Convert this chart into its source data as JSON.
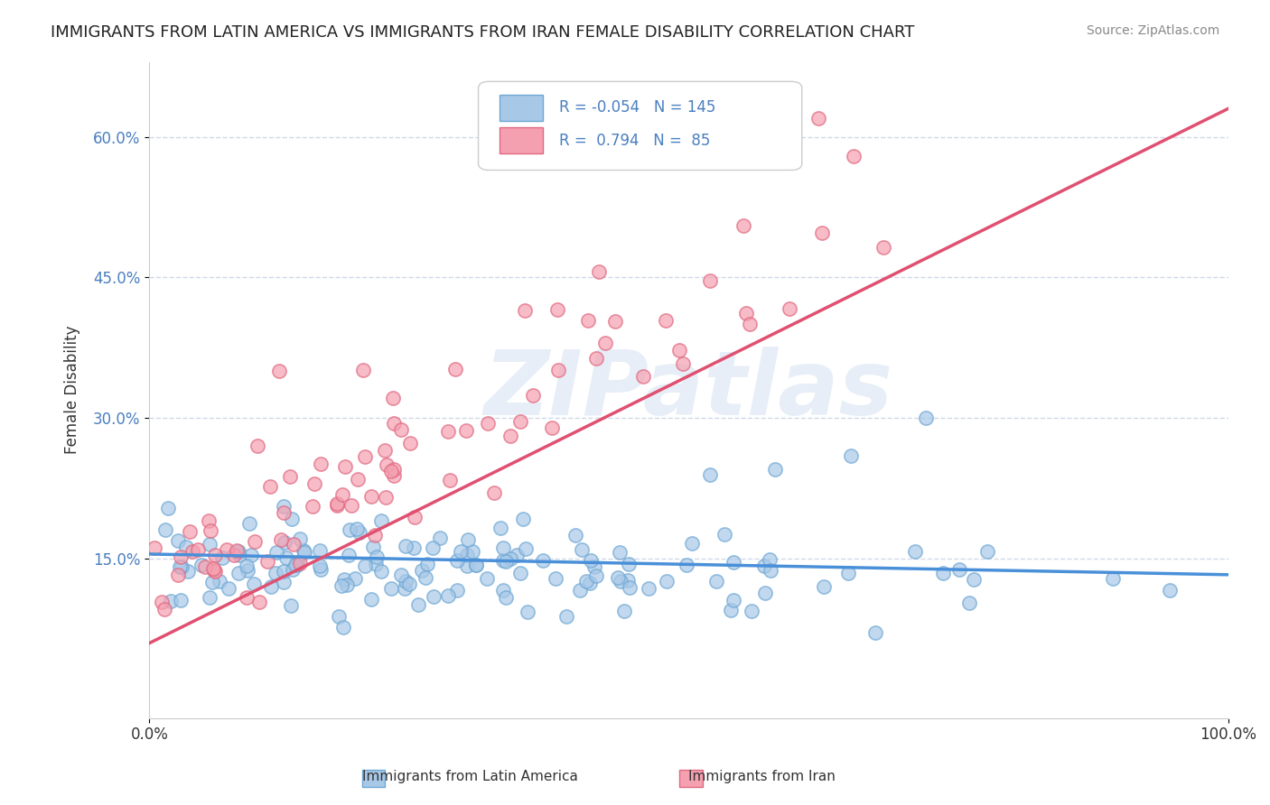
{
  "title": "IMMIGRANTS FROM LATIN AMERICA VS IMMIGRANTS FROM IRAN FEMALE DISABILITY CORRELATION CHART",
  "source": "Source: ZipAtlas.com",
  "ylabel": "Female Disability",
  "xlabel_ticks": [
    "0.0%",
    "100.0%"
  ],
  "ylabel_ticks": [
    "15.0%",
    "30.0%",
    "45.0%",
    "60.0%"
  ],
  "watermark": "ZIPatlas",
  "legend_entries": [
    {
      "label": "Immigrants from Latin America",
      "color": "#a8c4e0",
      "R": "-0.054",
      "N": "145"
    },
    {
      "label": "Immigrants from Iran",
      "color": "#f4a0b0",
      "R": "0.794",
      "N": "85"
    }
  ],
  "series_latin": {
    "color": "#7aaedc",
    "trend_color": "#4a90d9",
    "R": -0.054,
    "N": 145,
    "x_range": [
      0,
      1
    ],
    "trend_start_y": 0.155,
    "trend_end_y": 0.133
  },
  "series_iran": {
    "color": "#f08898",
    "trend_color": "#e05070",
    "R": 0.794,
    "N": 85,
    "x_range": [
      0,
      1
    ],
    "trend_start_y": 0.06,
    "trend_end_y": 0.63
  },
  "xlim": [
    0,
    1
  ],
  "ylim": [
    -0.02,
    0.68
  ],
  "background_color": "#ffffff",
  "grid_color": "#d0d8e8",
  "title_fontsize": 13,
  "source_fontsize": 10
}
